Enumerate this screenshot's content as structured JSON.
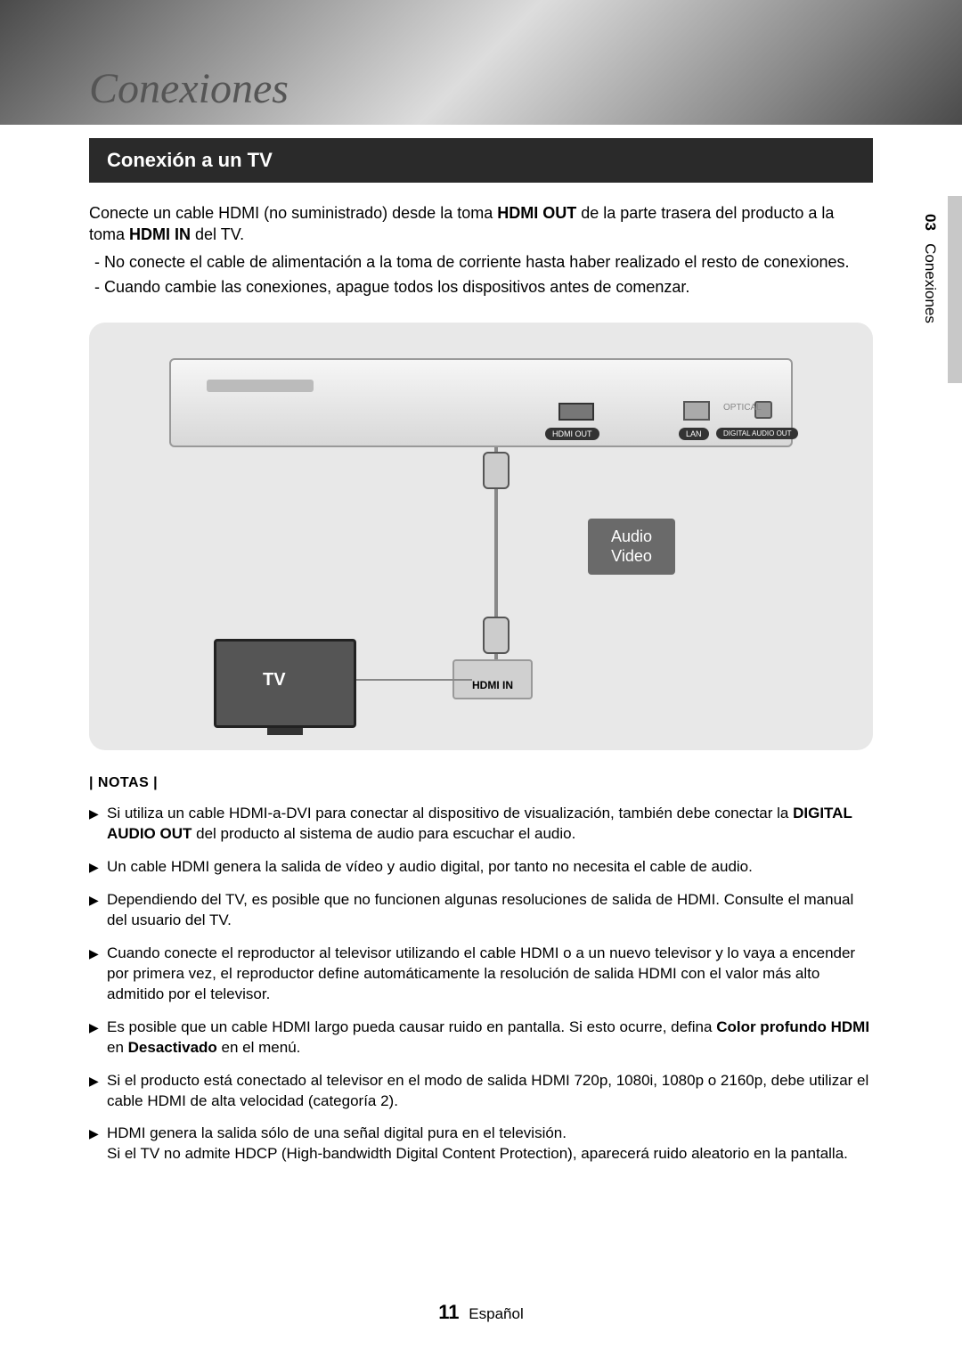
{
  "chapter_title": "Conexiones",
  "section_title": "Conexión a un TV",
  "side_tab": {
    "number": "03",
    "label": "Conexiones"
  },
  "intro": {
    "text_before": "Conecte un cable HDMI (no suministrado) desde la toma ",
    "bold1": "HDMI OUT",
    "text_mid": " de la parte trasera del producto a la toma ",
    "bold2": "HDMI IN",
    "text_after": " del TV."
  },
  "intro_bullets": [
    "-  No conecte el cable de alimentación a la toma de corriente hasta haber realizado el resto de conexiones.",
    "-  Cuando cambie las conexiones, apague todos los dispositivos antes de comenzar."
  ],
  "diagram": {
    "port_hdmi_out": "HDMI OUT",
    "port_lan": "LAN",
    "port_digital_audio": "DIGITAL AUDIO OUT",
    "port_optical": "OPTICAL",
    "av_line1": "Audio",
    "av_line2": "Video",
    "hdmi_in": "HDMI IN",
    "tv_label": "TV",
    "bg_color": "#e8e8e8"
  },
  "notas_header": "| NOTAS |",
  "notes": [
    {
      "segments": [
        {
          "t": "Si utiliza un cable HDMI-a-DVI para conectar al dispositivo de visualización, también debe conectar la "
        },
        {
          "t": "DIGITAL AUDIO OUT",
          "b": true
        },
        {
          "t": " del producto al sistema de audio para escuchar el audio."
        }
      ]
    },
    {
      "segments": [
        {
          "t": "Un cable HDMI genera la salida de vídeo y audio digital, por tanto no necesita el cable de audio."
        }
      ]
    },
    {
      "segments": [
        {
          "t": "Dependiendo del TV, es posible que no funcionen algunas resoluciones de salida de HDMI. Consulte el manual del usuario del TV."
        }
      ]
    },
    {
      "segments": [
        {
          "t": "Cuando conecte el reproductor al televisor utilizando el cable HDMI o a un nuevo televisor y lo vaya a encender por primera vez, el reproductor define automáticamente la resolución de salida HDMI con el valor más alto admitido por el televisor."
        }
      ]
    },
    {
      "segments": [
        {
          "t": "Es posible que un cable HDMI largo pueda causar ruido en pantalla. Si esto ocurre, defina "
        },
        {
          "t": "Color profundo HDMI",
          "b": true
        },
        {
          "t": " en "
        },
        {
          "t": "Desactivado",
          "b": true
        },
        {
          "t": " en el menú."
        }
      ]
    },
    {
      "segments": [
        {
          "t": "Si el producto está conectado al televisor en el modo de salida HDMI 720p, 1080i, 1080p o 2160p, debe utilizar el cable HDMI de alta velocidad (categoría 2)."
        }
      ]
    },
    {
      "segments": [
        {
          "t": "HDMI genera la salida sólo de una señal digital pura en el televisión.\nSi el TV no admite HDCP (High-bandwidth Digital Content Protection), aparecerá ruido aleatorio en la pantalla."
        }
      ]
    }
  ],
  "footer": {
    "page": "11",
    "lang": "Español"
  }
}
